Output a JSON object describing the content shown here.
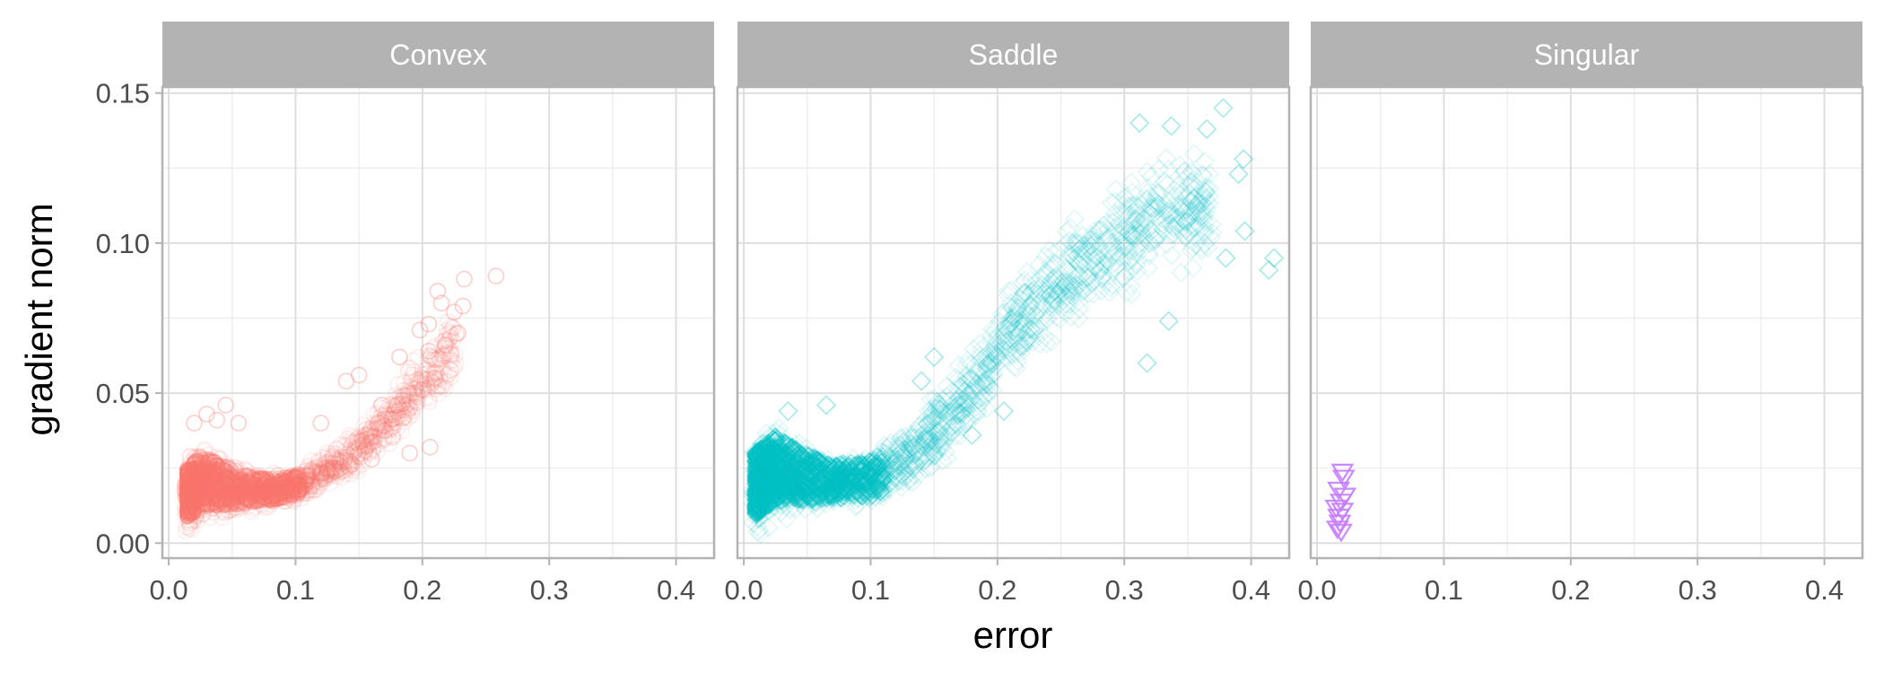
{
  "chart_data": {
    "type": "scatter",
    "xlabel": "error",
    "ylabel": "gradient norm",
    "xlim": [
      -0.005,
      0.43
    ],
    "ylim": [
      -0.005,
      0.152
    ],
    "x_ticks": [
      0.0,
      0.1,
      0.2,
      0.3,
      0.4
    ],
    "x_tick_labels": [
      "0.0",
      "0.1",
      "0.2",
      "0.3",
      "0.4"
    ],
    "y_ticks": [
      0.0,
      0.05,
      0.1,
      0.15
    ],
    "y_tick_labels": [
      "0.00",
      "0.05",
      "0.10",
      "0.15"
    ],
    "grid": true,
    "legend": "none",
    "point_opacity": 0.12,
    "facets": [
      {
        "name": "Convex",
        "marker": "circle",
        "color": "#F8766D",
        "dense_band": [
          {
            "x": 0.015,
            "y_low": 0.002,
            "y_high": 0.03
          },
          {
            "x": 0.025,
            "y_low": 0.004,
            "y_high": 0.035
          },
          {
            "x": 0.04,
            "y_low": 0.006,
            "y_high": 0.032
          },
          {
            "x": 0.06,
            "y_low": 0.009,
            "y_high": 0.026
          },
          {
            "x": 0.08,
            "y_low": 0.011,
            "y_high": 0.024
          },
          {
            "x": 0.1,
            "y_low": 0.013,
            "y_high": 0.025
          },
          {
            "x": 0.12,
            "y_low": 0.016,
            "y_high": 0.03
          },
          {
            "x": 0.14,
            "y_low": 0.02,
            "y_high": 0.036
          },
          {
            "x": 0.16,
            "y_low": 0.026,
            "y_high": 0.045
          },
          {
            "x": 0.18,
            "y_low": 0.033,
            "y_high": 0.055
          },
          {
            "x": 0.2,
            "y_low": 0.04,
            "y_high": 0.068
          },
          {
            "x": 0.225,
            "y_low": 0.05,
            "y_high": 0.08
          }
        ],
        "outliers": [
          {
            "x": 0.258,
            "y": 0.089
          },
          {
            "x": 0.233,
            "y": 0.088
          },
          {
            "x": 0.212,
            "y": 0.084
          },
          {
            "x": 0.215,
            "y": 0.08
          },
          {
            "x": 0.232,
            "y": 0.079
          },
          {
            "x": 0.225,
            "y": 0.077
          },
          {
            "x": 0.205,
            "y": 0.073
          },
          {
            "x": 0.198,
            "y": 0.071
          },
          {
            "x": 0.228,
            "y": 0.07
          },
          {
            "x": 0.218,
            "y": 0.066
          },
          {
            "x": 0.182,
            "y": 0.062
          },
          {
            "x": 0.205,
            "y": 0.064
          },
          {
            "x": 0.168,
            "y": 0.046
          },
          {
            "x": 0.14,
            "y": 0.054
          },
          {
            "x": 0.15,
            "y": 0.056
          },
          {
            "x": 0.03,
            "y": 0.043
          },
          {
            "x": 0.045,
            "y": 0.046
          },
          {
            "x": 0.038,
            "y": 0.041
          },
          {
            "x": 0.02,
            "y": 0.04
          },
          {
            "x": 0.19,
            "y": 0.03
          },
          {
            "x": 0.206,
            "y": 0.032
          },
          {
            "x": 0.16,
            "y": 0.028
          },
          {
            "x": 0.055,
            "y": 0.04
          },
          {
            "x": 0.12,
            "y": 0.04
          }
        ]
      },
      {
        "name": "Saddle",
        "marker": "diamond",
        "color": "#00BFC4",
        "dense_band": [
          {
            "x": 0.01,
            "y_low": 0.0,
            "y_high": 0.038
          },
          {
            "x": 0.025,
            "y_low": 0.004,
            "y_high": 0.044
          },
          {
            "x": 0.045,
            "y_low": 0.007,
            "y_high": 0.036
          },
          {
            "x": 0.07,
            "y_low": 0.01,
            "y_high": 0.03
          },
          {
            "x": 0.1,
            "y_low": 0.01,
            "y_high": 0.032
          },
          {
            "x": 0.13,
            "y_low": 0.016,
            "y_high": 0.042
          },
          {
            "x": 0.16,
            "y_low": 0.026,
            "y_high": 0.056
          },
          {
            "x": 0.19,
            "y_low": 0.04,
            "y_high": 0.074
          },
          {
            "x": 0.22,
            "y_low": 0.056,
            "y_high": 0.094
          },
          {
            "x": 0.25,
            "y_low": 0.066,
            "y_high": 0.108
          },
          {
            "x": 0.28,
            "y_low": 0.074,
            "y_high": 0.12
          },
          {
            "x": 0.31,
            "y_low": 0.078,
            "y_high": 0.128
          },
          {
            "x": 0.34,
            "y_low": 0.085,
            "y_high": 0.136
          },
          {
            "x": 0.37,
            "y_low": 0.09,
            "y_high": 0.132
          }
        ],
        "outliers": [
          {
            "x": 0.312,
            "y": 0.14
          },
          {
            "x": 0.337,
            "y": 0.139
          },
          {
            "x": 0.378,
            "y": 0.145
          },
          {
            "x": 0.365,
            "y": 0.138
          },
          {
            "x": 0.394,
            "y": 0.128
          },
          {
            "x": 0.39,
            "y": 0.123
          },
          {
            "x": 0.414,
            "y": 0.091
          },
          {
            "x": 0.418,
            "y": 0.095
          },
          {
            "x": 0.395,
            "y": 0.104
          },
          {
            "x": 0.38,
            "y": 0.095
          },
          {
            "x": 0.318,
            "y": 0.06
          },
          {
            "x": 0.335,
            "y": 0.074
          },
          {
            "x": 0.065,
            "y": 0.046
          },
          {
            "x": 0.035,
            "y": 0.044
          },
          {
            "x": 0.14,
            "y": 0.054
          },
          {
            "x": 0.15,
            "y": 0.062
          },
          {
            "x": 0.18,
            "y": 0.036
          },
          {
            "x": 0.205,
            "y": 0.044
          }
        ]
      },
      {
        "name": "Singular",
        "marker": "triangle-down",
        "color": "#C77CFF",
        "points": [
          {
            "x": 0.02,
            "y": 0.024
          },
          {
            "x": 0.021,
            "y": 0.022
          },
          {
            "x": 0.017,
            "y": 0.018
          },
          {
            "x": 0.022,
            "y": 0.016
          },
          {
            "x": 0.019,
            "y": 0.014
          },
          {
            "x": 0.015,
            "y": 0.012
          },
          {
            "x": 0.02,
            "y": 0.011
          },
          {
            "x": 0.017,
            "y": 0.009
          },
          {
            "x": 0.018,
            "y": 0.007
          },
          {
            "x": 0.016,
            "y": 0.005
          },
          {
            "x": 0.019,
            "y": 0.004
          }
        ]
      }
    ]
  }
}
